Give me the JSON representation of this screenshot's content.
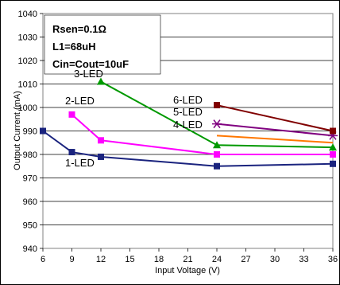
{
  "chart_data": {
    "type": "line",
    "title": "",
    "xlabel": "Input Voltage (V)",
    "ylabel": "Output Current (mA)",
    "xlim": [
      6,
      36
    ],
    "ylim": [
      940,
      1040
    ],
    "x_ticks": [
      "6",
      "9",
      "12",
      "15",
      "18",
      "21",
      "24",
      "27",
      "30",
      "33",
      "36"
    ],
    "y_ticks": [
      "940",
      "950",
      "960",
      "970",
      "980",
      "990",
      "1000",
      "1010",
      "1020",
      "1030",
      "1040"
    ],
    "grid": "horizontal",
    "annotation_lines": [
      "Rsen=0.1Ω",
      "L1=68uH",
      "Cin=Cout=10uF"
    ],
    "series": [
      {
        "name": "1-LED",
        "color": "#1a237e",
        "marker": "square",
        "x": [
          6,
          9,
          12,
          24,
          36
        ],
        "y": [
          990,
          981,
          979,
          975,
          976
        ]
      },
      {
        "name": "2-LED",
        "color": "#ff00ff",
        "marker": "square",
        "x": [
          9,
          12,
          24,
          36
        ],
        "y": [
          997,
          986,
          980,
          980
        ]
      },
      {
        "name": "3-LED",
        "color": "#009900",
        "marker": "triangle",
        "x": [
          12,
          24,
          36
        ],
        "y": [
          1011,
          984,
          983
        ]
      },
      {
        "name": "4-LED",
        "color": "#ff7700",
        "marker": "none",
        "x": [
          24,
          36
        ],
        "y": [
          988,
          985
        ]
      },
      {
        "name": "5-LED",
        "color": "#800080",
        "marker": "asterisk",
        "x": [
          24,
          36
        ],
        "y": [
          993,
          988
        ]
      },
      {
        "name": "6-LED",
        "color": "#800000",
        "marker": "square",
        "x": [
          24,
          36
        ],
        "y": [
          1001,
          990
        ]
      }
    ]
  }
}
